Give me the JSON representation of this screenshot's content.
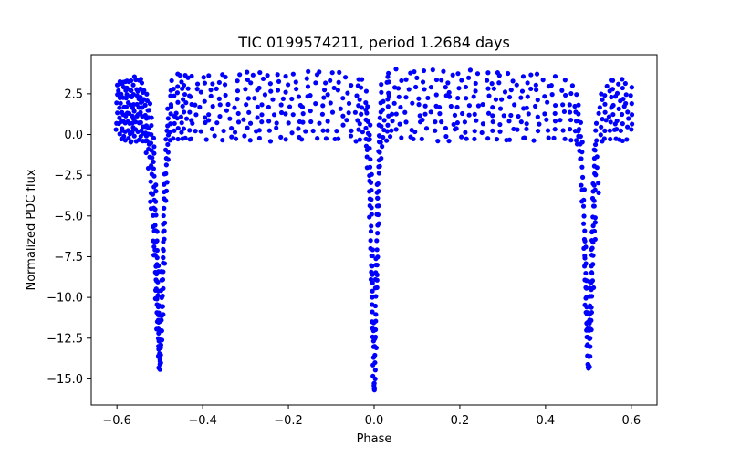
{
  "chart_data": {
    "type": "scatter",
    "title": "TIC 0199574211, period 1.2684 days",
    "xlabel": "Phase",
    "ylabel": "Normalized PDC flux",
    "xlim": [
      -0.66,
      0.66
    ],
    "ylim": [
      -16.6,
      4.9
    ],
    "grid": false,
    "marker_color": "#0000ff",
    "x_ticks": [
      -0.6,
      -0.4,
      -0.2,
      0.0,
      0.2,
      0.4,
      0.6
    ],
    "x_tick_labels": [
      "−0.6",
      "−0.4",
      "−0.2",
      "0.0",
      "0.2",
      "0.4",
      "0.6"
    ],
    "y_ticks": [
      2.5,
      0.0,
      -2.5,
      -5.0,
      -7.5,
      -10.0,
      -12.5,
      -15.0
    ],
    "y_tick_labels": [
      "2.5",
      "0.0",
      "−2.5",
      "−5.0",
      "−7.5",
      "−10.0",
      "−12.5",
      "−15.0"
    ],
    "series": [
      {
        "x": [
          -0.6,
          -0.595,
          -0.59,
          -0.585,
          -0.58,
          -0.575,
          -0.57,
          -0.565,
          -0.56,
          -0.555,
          -0.55,
          -0.545,
          -0.54,
          -0.535,
          -0.53,
          -0.525,
          -0.52,
          -0.515,
          -0.51,
          -0.507,
          -0.504,
          -0.502,
          -0.5,
          -0.498,
          -0.496,
          -0.493,
          -0.49,
          -0.485,
          -0.48,
          -0.475,
          -0.47,
          -0.46,
          -0.45,
          -0.44,
          -0.43,
          -0.42,
          -0.4,
          -0.38,
          -0.36,
          -0.34,
          -0.32,
          -0.3,
          -0.28,
          -0.26,
          -0.24,
          -0.22,
          -0.2,
          -0.18,
          -0.16,
          -0.14,
          -0.12,
          -0.1,
          -0.08,
          -0.06,
          -0.04,
          -0.03,
          -0.02,
          -0.015,
          -0.01,
          -0.007,
          -0.004,
          -0.002,
          0.0,
          0.002,
          0.004,
          0.007,
          0.01,
          0.015,
          0.02,
          0.03,
          0.04,
          0.06,
          0.08,
          0.1,
          0.12,
          0.14,
          0.16,
          0.18,
          0.2,
          0.22,
          0.24,
          0.26,
          0.28,
          0.3,
          0.32,
          0.34,
          0.36,
          0.38,
          0.4,
          0.42,
          0.44,
          0.46,
          0.47,
          0.475,
          0.48,
          0.485,
          0.49,
          0.493,
          0.496,
          0.498,
          0.5,
          0.502,
          0.504,
          0.507,
          0.51,
          0.515,
          0.52,
          0.53,
          0.54,
          0.55,
          0.56,
          0.57,
          0.58,
          0.59,
          0.6
        ],
        "y_upper": [
          3.0,
          3.2,
          3.1,
          3.3,
          3.2,
          3.4,
          3.3,
          3.2,
          3.5,
          3.3,
          3.2,
          3.4,
          3.1,
          2.8,
          2.5,
          2.0,
          1.0,
          -0.2,
          -3.0,
          -6.0,
          -8.0,
          -10.5,
          -13.5,
          -11.0,
          -8.5,
          -5.5,
          -2.5,
          0.2,
          1.5,
          2.8,
          3.3,
          3.6,
          3.7,
          3.6,
          3.4,
          3.7,
          3.6,
          3.7,
          3.8,
          3.6,
          3.7,
          3.8,
          3.6,
          3.9,
          3.7,
          3.8,
          3.6,
          3.7,
          3.9,
          3.6,
          3.8,
          3.9,
          3.7,
          3.6,
          3.5,
          3.3,
          2.6,
          1.8,
          0.6,
          -2.5,
          -7.0,
          -11.5,
          -15.3,
          -12.0,
          -7.5,
          -3.0,
          0.5,
          2.0,
          3.0,
          3.6,
          3.8,
          3.9,
          3.8,
          3.9,
          3.8,
          3.9,
          3.8,
          3.7,
          3.8,
          3.9,
          3.7,
          3.8,
          3.7,
          3.6,
          3.7,
          3.6,
          3.7,
          3.6,
          3.4,
          3.5,
          3.3,
          3.0,
          2.4,
          1.8,
          0.8,
          -0.5,
          -3.5,
          -6.5,
          -9.0,
          -11.0,
          -14.0,
          -11.5,
          -9.0,
          -6.0,
          -3.0,
          -0.5,
          1.2,
          2.6,
          3.0,
          3.3,
          3.4,
          3.2,
          3.3,
          3.1,
          3.0
        ],
        "y_lower": [
          0.2,
          0.1,
          -0.3,
          -0.2,
          -0.3,
          -0.2,
          -0.4,
          -0.3,
          -0.2,
          -0.3,
          -0.3,
          -0.2,
          -0.4,
          -0.5,
          -1.0,
          -2.0,
          -4.5,
          -7.5,
          -10.0,
          -12.0,
          -13.5,
          -14.2,
          -14.4,
          -14.0,
          -13.0,
          -11.0,
          -8.0,
          -4.0,
          -1.5,
          -0.3,
          -0.3,
          -0.2,
          -0.3,
          -0.2,
          -0.3,
          -0.2,
          -0.3,
          -0.2,
          -0.3,
          -0.2,
          -0.3,
          -0.2,
          -0.3,
          -0.2,
          -0.3,
          -0.2,
          -0.3,
          -0.2,
          -0.3,
          -0.2,
          -0.3,
          -0.2,
          -0.3,
          -0.2,
          -0.3,
          -0.4,
          -0.8,
          -2.0,
          -5.0,
          -9.0,
          -12.5,
          -14.8,
          -15.6,
          -15.0,
          -13.0,
          -9.5,
          -5.5,
          -2.0,
          -0.7,
          -0.3,
          -0.2,
          -0.3,
          -0.2,
          -0.3,
          -0.2,
          -0.3,
          -0.2,
          -0.3,
          -0.2,
          -0.3,
          -0.2,
          -0.3,
          -0.2,
          -0.3,
          -0.2,
          -0.3,
          -0.2,
          -0.3,
          -0.2,
          -0.3,
          -0.2,
          -0.3,
          -0.4,
          -0.7,
          -1.5,
          -4.0,
          -8.0,
          -11.0,
          -13.0,
          -14.0,
          -14.4,
          -14.2,
          -13.5,
          -12.0,
          -9.5,
          -6.5,
          -3.5,
          -0.5,
          -0.3,
          -0.4,
          -0.3,
          -0.2,
          -0.3,
          -0.2,
          0.2
        ]
      }
    ]
  }
}
